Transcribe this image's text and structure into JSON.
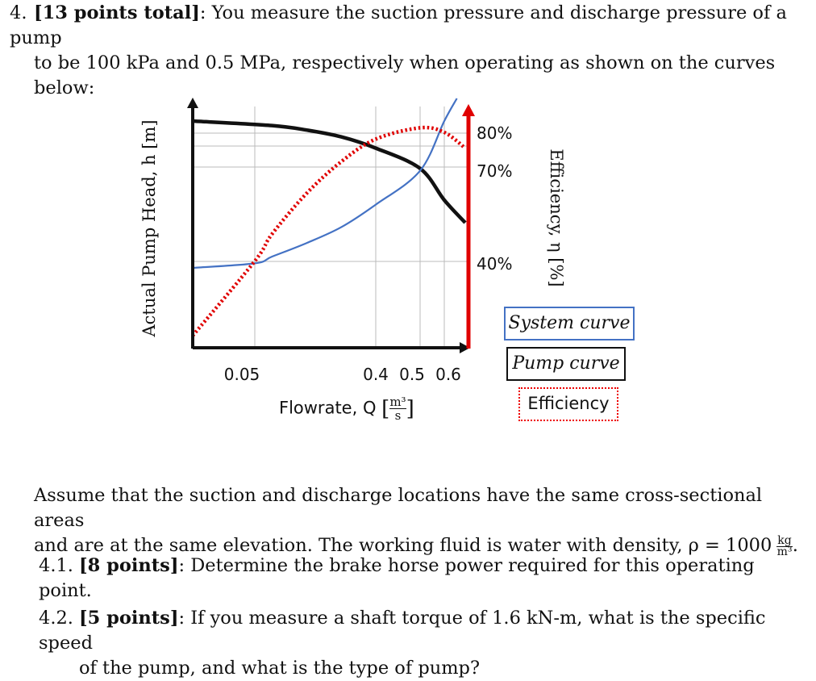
{
  "question": {
    "number": "4.",
    "points": "[13 points total]",
    "intro_line1": ": You measure the suction pressure and discharge pressure of a pump",
    "intro_line2": "to be 100 kPa and 0.5 MPa, respectively when operating as shown on the curves below:",
    "assume_line1": "Assume that the suction and discharge locations have the same cross-sectional areas",
    "assume_line2": "and are at the same elevation. The working fluid is water with density, ρ = 1000",
    "density_unit_num": "kg",
    "density_unit_den": "m³",
    "density_end": ".",
    "sub1_number": "4.1.",
    "sub1_points": "[8 points]",
    "sub1_text": ": Determine the brake horse power required for this operating point.",
    "sub2_number": "4.2.",
    "sub2_points": "[5 points]",
    "sub2_text_line1": ": If you measure a shaft torque of 1.6 kN-m, what is the specific speed",
    "sub2_text_line2": "of the pump, and what is the type of pump?"
  },
  "chart_data": {
    "type": "line",
    "ylabel": "Actual Pump Head, h [m]",
    "y2label": "Efficiency, η [%]",
    "xlabel": "Flowrate, Q",
    "xlabel_unit_num": "m³",
    "xlabel_unit_den": "s",
    "x_ticks": [
      "0.05",
      "0.4",
      "0.5",
      "0.6"
    ],
    "y2_ticks": [
      "80%",
      "70%",
      "40%"
    ],
    "legend": {
      "system": "System curve",
      "pump": "Pump curve",
      "efficiency": "Efficiency"
    },
    "colors": {
      "system": "#4472c4",
      "pump": "#111111",
      "efficiency": "#e00000",
      "right_axis": "#e00000"
    },
    "grid": true,
    "series": [
      {
        "key": "pump",
        "x": [
          0.0,
          0.1,
          0.2,
          0.3,
          0.4,
          0.5,
          0.6,
          0.65
        ],
        "y": [
          1.0,
          0.98,
          0.96,
          0.93,
          0.88,
          0.79,
          0.65,
          0.55
        ]
      },
      {
        "key": "system",
        "x": [
          0.0,
          0.05,
          0.1,
          0.2,
          0.3,
          0.4,
          0.5,
          0.6,
          0.63
        ],
        "y": [
          0.35,
          0.37,
          0.4,
          0.46,
          0.53,
          0.63,
          0.78,
          1.0,
          1.1
        ]
      },
      {
        "key": "efficiency",
        "x": [
          0.0,
          0.05,
          0.1,
          0.2,
          0.3,
          0.4,
          0.5,
          0.6,
          0.65
        ],
        "y": [
          0.05,
          0.38,
          0.5,
          0.68,
          0.82,
          0.92,
          0.97,
          0.95,
          0.88
        ]
      }
    ]
  }
}
